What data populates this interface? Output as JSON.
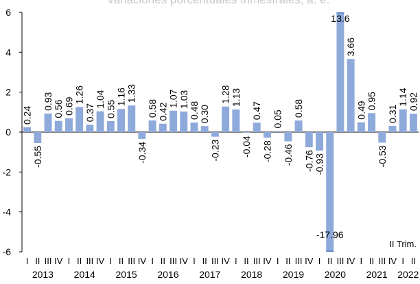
{
  "chart_data": {
    "type": "bar",
    "title": "Variaciones porcentuales trimestrales, a. e.",
    "xlabel": "",
    "ylabel": "",
    "ylim": [
      -6,
      6
    ],
    "yticks": [
      6,
      4,
      2,
      0,
      -2,
      -4,
      -6
    ],
    "ytick_labels": [
      "6",
      "4",
      "2",
      "0",
      "-2",
      "-4",
      "-6"
    ],
    "years": [
      "2013",
      "2014",
      "2015",
      "2016",
      "2017",
      "2018",
      "2019",
      "2020",
      "2021",
      "2022"
    ],
    "quarter_labels": [
      "I",
      "II",
      "III",
      "IV"
    ],
    "values": [
      0.24,
      -0.55,
      0.93,
      0.56,
      0.69,
      1.26,
      0.37,
      1.04,
      0.55,
      1.16,
      1.33,
      -0.34,
      0.58,
      0.42,
      1.07,
      1.03,
      0.48,
      0.3,
      -0.23,
      1.28,
      1.13,
      -0.04,
      0.47,
      -0.28,
      0.05,
      -0.46,
      0.58,
      -0.76,
      -0.93,
      -17.96,
      13.6,
      3.66,
      0.49,
      0.95,
      -0.53,
      0.31,
      1.14,
      0.92
    ],
    "value_labels": [
      "0.24",
      "-0.55",
      "0.93",
      "0.56",
      "0.69",
      "1.26",
      "0.37",
      "1.04",
      "0.55",
      "1.16",
      "1.33",
      "-0.34",
      "0.58",
      "0.42",
      "1.07",
      "1.03",
      "0.48",
      "0.30",
      "-0.23",
      "1.28",
      "1.13",
      "-0.04",
      "0.47",
      "-0.28",
      "0.05",
      "-0.46",
      "0.58",
      "-0.76",
      "-0.93",
      "-17.96",
      "13.6",
      "3.66",
      "0.49",
      "0.95",
      "-0.53",
      "0.31",
      "1.14",
      "0.92"
    ],
    "annotation": "II Trim.",
    "bar_color": "#8eaadb",
    "grid": false
  }
}
